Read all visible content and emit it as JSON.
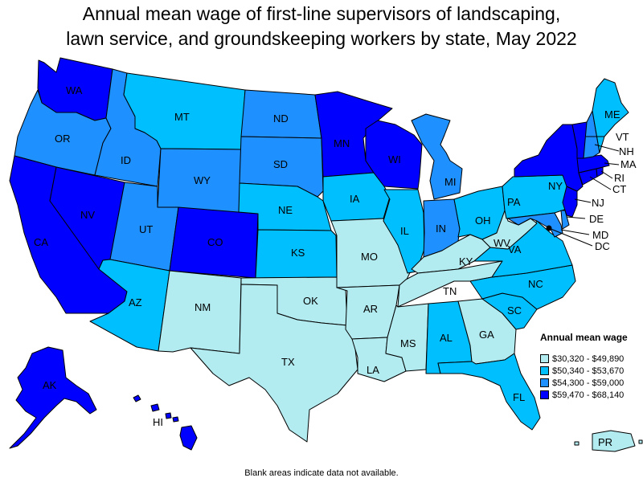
{
  "title": {
    "line1": "Annual mean wage of first-line supervisors of landscaping,",
    "line2": "lawn service, and groundskeeping workers by state, May 2022"
  },
  "legend": {
    "title": "Annual mean wage",
    "items": [
      {
        "label": "$30,320 - $49,890",
        "color": "#b2ebf0"
      },
      {
        "label": "$50,340 - $53,670",
        "color": "#00bfff"
      },
      {
        "label": "$54,300 - $59,000",
        "color": "#1e90ff"
      },
      {
        "label": "$59,470 - $68,140",
        "color": "#0000ff"
      }
    ]
  },
  "footnote": "Blank areas indicate data not available.",
  "states": {
    "WA": {
      "label": "WA",
      "bin": 3
    },
    "OR": {
      "label": "OR",
      "bin": 2
    },
    "CA": {
      "label": "CA",
      "bin": 3
    },
    "NV": {
      "label": "NV",
      "bin": 3
    },
    "ID": {
      "label": "ID",
      "bin": 2
    },
    "MT": {
      "label": "MT",
      "bin": 1
    },
    "WY": {
      "label": "WY",
      "bin": 2
    },
    "UT": {
      "label": "UT",
      "bin": 2
    },
    "AZ": {
      "label": "AZ",
      "bin": 1
    },
    "CO": {
      "label": "CO",
      "bin": 3
    },
    "NM": {
      "label": "NM",
      "bin": 0
    },
    "ND": {
      "label": "ND",
      "bin": 2
    },
    "SD": {
      "label": "SD",
      "bin": 2
    },
    "NE": {
      "label": "NE",
      "bin": 1
    },
    "KS": {
      "label": "KS",
      "bin": 1
    },
    "OK": {
      "label": "OK",
      "bin": 0
    },
    "TX": {
      "label": "TX",
      "bin": 0
    },
    "MN": {
      "label": "MN",
      "bin": 3
    },
    "IA": {
      "label": "IA",
      "bin": 1
    },
    "MO": {
      "label": "MO",
      "bin": 0
    },
    "AR": {
      "label": "AR",
      "bin": 0
    },
    "LA": {
      "label": "LA",
      "bin": 0
    },
    "WI": {
      "label": "WI",
      "bin": 3
    },
    "IL": {
      "label": "IL",
      "bin": 1
    },
    "MI": {
      "label": "MI",
      "bin": 2
    },
    "IN": {
      "label": "IN",
      "bin": 2
    },
    "OH": {
      "label": "OH",
      "bin": 1
    },
    "KY": {
      "label": "KY",
      "bin": 0
    },
    "TN": {
      "label": "TN",
      "bin": 0
    },
    "MS": {
      "label": "MS",
      "bin": 0
    },
    "AL": {
      "label": "AL",
      "bin": 1
    },
    "GA": {
      "label": "GA",
      "bin": 0
    },
    "FL": {
      "label": "FL",
      "bin": 1
    },
    "SC": {
      "label": "SC",
      "bin": 1
    },
    "NC": {
      "label": "NC",
      "bin": 1
    },
    "VA": {
      "label": "VA",
      "bin": 1
    },
    "WV": {
      "label": "WV",
      "bin": 0
    },
    "PA": {
      "label": "PA",
      "bin": 1
    },
    "NY": {
      "label": "NY",
      "bin": 3
    },
    "NJ": {
      "label": "NJ",
      "bin": 3
    },
    "DE": {
      "label": "DE",
      "bin": 2
    },
    "MD": {
      "label": "MD",
      "bin": 2
    },
    "DC": {
      "label": "DC",
      "bin": 3
    },
    "CT": {
      "label": "CT",
      "bin": 3
    },
    "RI": {
      "label": "RI",
      "bin": 3
    },
    "MA": {
      "label": "MA",
      "bin": 3
    },
    "VT": {
      "label": "VT",
      "bin": 3
    },
    "NH": {
      "label": "NH",
      "bin": 2
    },
    "ME": {
      "label": "ME",
      "bin": 1
    },
    "AK": {
      "label": "AK",
      "bin": 3
    },
    "HI": {
      "label": "HI",
      "bin": 3
    },
    "PR": {
      "label": "PR",
      "bin": 0
    }
  }
}
